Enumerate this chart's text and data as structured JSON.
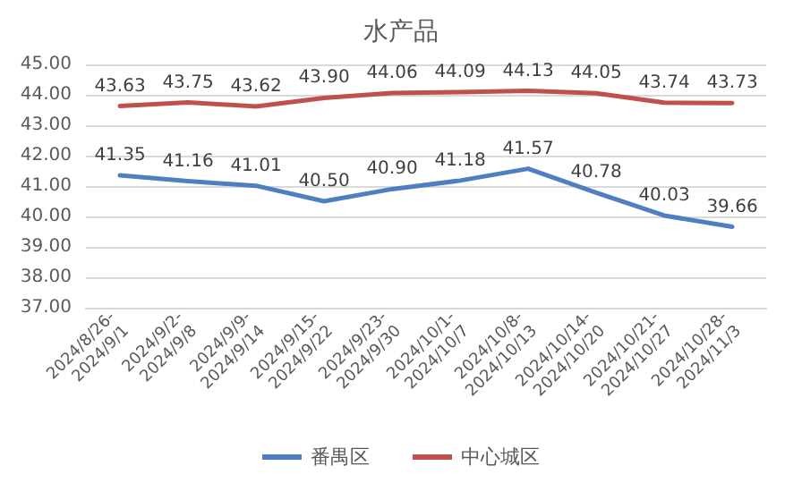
{
  "chart_data": {
    "type": "line",
    "title": "水产品",
    "categories": [
      "2024/8/26-2024/9/1",
      "2024/9/2-2024/9/8",
      "2024/9/9-2024/9/14",
      "2024/9/15-2024/9/22",
      "2024/9/23-2024/9/30",
      "2024/10/1-2024/10/7",
      "2024/10/8-2024/10/13",
      "2024/10/14-2024/10/20",
      "2024/10/21-2024/10/27",
      "2024/10/28-2024/11/3"
    ],
    "series": [
      {
        "name": "番禺区",
        "color": "#4f7fc0",
        "values": [
          41.35,
          41.16,
          41.01,
          40.5,
          40.9,
          41.18,
          41.57,
          40.78,
          40.03,
          39.66
        ],
        "value_labels": [
          "41.35",
          "41.16",
          "41.01",
          "40.50",
          "40.90",
          "41.18",
          "41.57",
          "40.78",
          "40.03",
          "39.66"
        ]
      },
      {
        "name": "中心城区",
        "color": "#c0504d",
        "values": [
          43.63,
          43.75,
          43.62,
          43.9,
          44.06,
          44.09,
          44.13,
          44.05,
          43.74,
          43.73
        ],
        "value_labels": [
          "43.63",
          "43.75",
          "43.62",
          "43.90",
          "44.06",
          "44.09",
          "44.13",
          "44.05",
          "43.74",
          "43.73"
        ]
      }
    ],
    "ylim": [
      37,
      45
    ],
    "yticks": [
      {
        "value": 37,
        "label": "37.00"
      },
      {
        "value": 38,
        "label": "38.00"
      },
      {
        "value": 39,
        "label": "39.00"
      },
      {
        "value": 40,
        "label": "40.00"
      },
      {
        "value": 41,
        "label": "41.00"
      },
      {
        "value": 42,
        "label": "42.00"
      },
      {
        "value": 43,
        "label": "43.00"
      },
      {
        "value": 44,
        "label": "44.00"
      },
      {
        "value": 45,
        "label": "45.00"
      }
    ],
    "grid": "y",
    "legend": "bottom",
    "marker": "none",
    "line_style": "solid"
  }
}
